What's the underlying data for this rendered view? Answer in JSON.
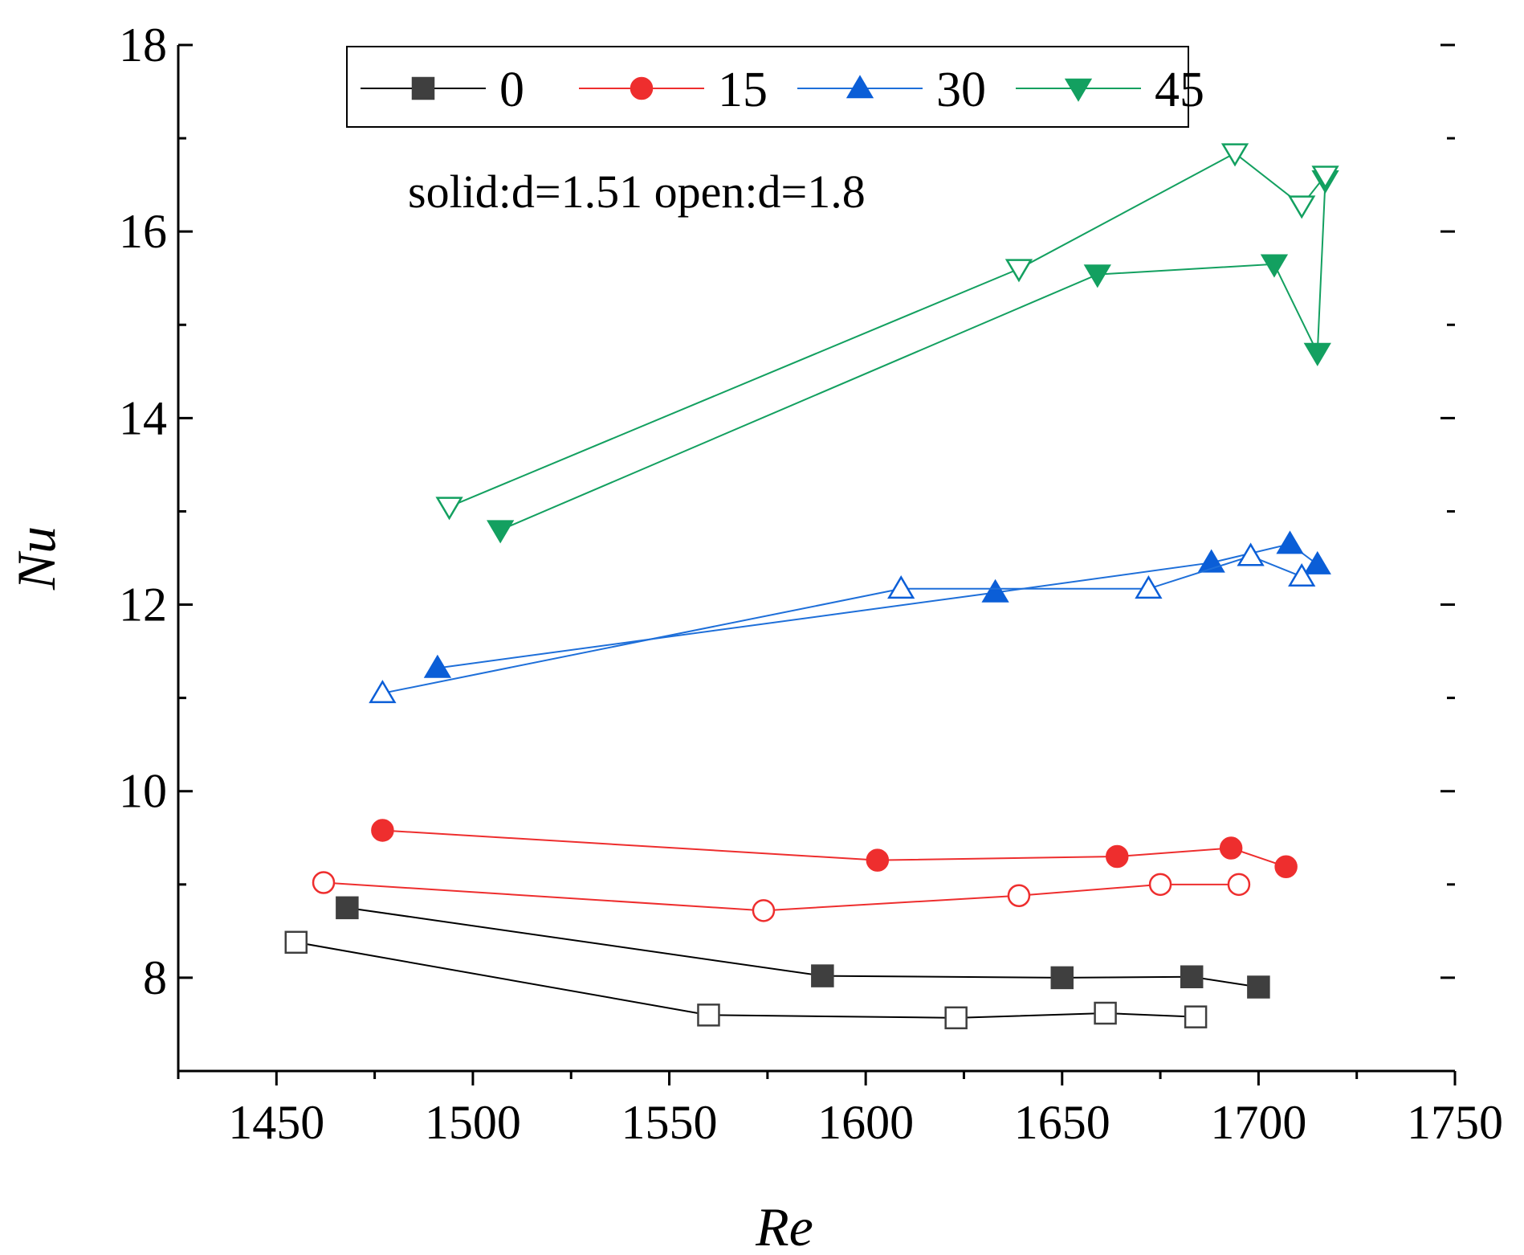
{
  "chart_data": {
    "type": "line",
    "xlabel": "Re",
    "ylabel": "Nu",
    "xlim": [
      1425,
      1750
    ],
    "ylim": [
      7,
      18
    ],
    "x_ticks": [
      1450,
      1500,
      1550,
      1600,
      1650,
      1700,
      1750
    ],
    "y_ticks": [
      8,
      10,
      12,
      14,
      16,
      18
    ],
    "annotation": "solid:d=1.51 open:d=1.8",
    "legend": [
      "0",
      "15",
      "30",
      "45"
    ],
    "series": [
      {
        "name": "0",
        "marker": "square",
        "color": "#3f3f3f",
        "line_color": "#000000",
        "fill": "solid",
        "x": [
          1468,
          1589,
          1650,
          1683,
          1700
        ],
        "y": [
          8.75,
          8.02,
          8.0,
          8.01,
          7.9
        ]
      },
      {
        "name": "0",
        "marker": "square",
        "color": "#3f3f3f",
        "line_color": "#000000",
        "fill": "open",
        "x": [
          1455,
          1560,
          1623,
          1661,
          1684
        ],
        "y": [
          8.38,
          7.6,
          7.57,
          7.62,
          7.58
        ]
      },
      {
        "name": "15",
        "marker": "circle",
        "color": "#ee2e2e",
        "line_color": "#ee2e2e",
        "fill": "solid",
        "x": [
          1477,
          1603,
          1664,
          1693,
          1707
        ],
        "y": [
          9.58,
          9.26,
          9.3,
          9.39,
          9.19
        ]
      },
      {
        "name": "15",
        "marker": "circle",
        "color": "#ee2e2e",
        "line_color": "#ee2e2e",
        "fill": "open",
        "x": [
          1462,
          1574,
          1639,
          1675,
          1695
        ],
        "y": [
          9.02,
          8.72,
          8.88,
          9.0,
          9.0
        ]
      },
      {
        "name": "30",
        "marker": "triangle-up",
        "color": "#0b5ed7",
        "line_color": "#1e6fd9",
        "fill": "solid",
        "x": [
          1491,
          1633,
          1688,
          1708,
          1715
        ],
        "y": [
          11.32,
          12.13,
          12.45,
          12.65,
          12.43
        ]
      },
      {
        "name": "30",
        "marker": "triangle-up",
        "color": "#0b5ed7",
        "line_color": "#1e6fd9",
        "fill": "open",
        "x": [
          1477,
          1609,
          1672,
          1698,
          1711
        ],
        "y": [
          11.05,
          12.17,
          12.17,
          12.52,
          12.3
        ]
      },
      {
        "name": "45",
        "marker": "triangle-down",
        "color": "#13a060",
        "line_color": "#13a060",
        "fill": "solid",
        "x": [
          1507,
          1659,
          1704,
          1715,
          1717
        ],
        "y": [
          12.8,
          15.54,
          15.65,
          14.7,
          16.55
        ]
      },
      {
        "name": "45",
        "marker": "triangle-down",
        "color": "#13a060",
        "line_color": "#13a060",
        "fill": "open",
        "x": [
          1494,
          1639,
          1694,
          1711,
          1717
        ],
        "y": [
          13.05,
          15.6,
          16.84,
          16.28,
          16.6
        ]
      }
    ]
  }
}
